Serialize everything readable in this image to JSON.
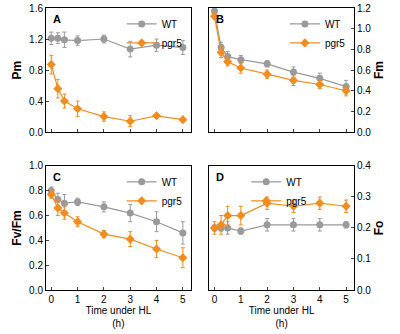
{
  "chart_data": [
    {
      "type": "line",
      "annotations": [
        "A"
      ],
      "y_label": "Pm",
      "tick_labels": "y",
      "legend": "upper right",
      "x": [
        0,
        0.25,
        0.5,
        1,
        2,
        3,
        4,
        5
      ],
      "xlim": [
        -0.2,
        5.3
      ],
      "xticks": [
        0,
        1,
        2,
        3,
        4,
        5
      ],
      "ylim": [
        0,
        1.6
      ],
      "yticks": [
        {
          "value": 0,
          "label": "0.0"
        },
        {
          "value": 0.4,
          "label": "0.4"
        },
        {
          "value": 0.8,
          "label": "0.8"
        },
        {
          "value": 1.2,
          "label": "1.2"
        },
        {
          "value": 1.6,
          "label": "1.6"
        }
      ],
      "series": [
        {
          "name": "WT",
          "color": "#9a9a9a",
          "marker": "circle",
          "values": [
            1.21,
            1.21,
            1.19,
            1.18,
            1.2,
            1.07,
            1.12,
            1.09
          ],
          "errors": [
            0.08,
            0.07,
            0.1,
            0.06,
            0.05,
            0.1,
            0.08,
            0.09
          ]
        },
        {
          "name": "pgr5",
          "color": "#f28c1e",
          "marker": "diamond",
          "values": [
            0.87,
            0.56,
            0.4,
            0.3,
            0.2,
            0.14,
            0.21,
            0.16
          ],
          "errors": [
            0.12,
            0.12,
            0.09,
            0.1,
            0.06,
            0.07,
            0.02,
            0.02
          ]
        }
      ]
    },
    {
      "type": "line",
      "annotations": [
        "B"
      ],
      "y_label": "Fm",
      "tick_labels": "y",
      "legend": "upper right",
      "x": [
        0,
        0.25,
        0.5,
        1,
        2,
        3,
        4,
        5
      ],
      "xlim": [
        -0.2,
        5.3
      ],
      "xticks": [
        0,
        1,
        2,
        3,
        4,
        5
      ],
      "ylim": [
        0,
        1.2
      ],
      "yticks": [
        {
          "value": 0,
          "label": "0.0"
        },
        {
          "value": 0.2,
          "label": "0.2"
        },
        {
          "value": 0.4,
          "label": "0.4"
        },
        {
          "value": 0.6,
          "label": "0.6"
        },
        {
          "value": 0.8,
          "label": "0.8"
        },
        {
          "value": 1.0,
          "label": "1.0"
        },
        {
          "value": 1.2,
          "label": "1.2"
        }
      ],
      "series": [
        {
          "name": "WT",
          "color": "#9a9a9a",
          "marker": "circle",
          "values": [
            1.17,
            0.82,
            0.73,
            0.7,
            0.66,
            0.58,
            0.52,
            0.44
          ],
          "errors": [
            0.03,
            0.05,
            0.05,
            0.04,
            0.03,
            0.05,
            0.05,
            0.06
          ]
        },
        {
          "name": "pgr5",
          "color": "#f28c1e",
          "marker": "diamond",
          "values": [
            1.12,
            0.77,
            0.68,
            0.62,
            0.56,
            0.5,
            0.46,
            0.4
          ],
          "errors": [
            0.03,
            0.05,
            0.04,
            0.05,
            0.04,
            0.05,
            0.04,
            0.05
          ]
        }
      ]
    },
    {
      "type": "line",
      "annotations": [
        "C"
      ],
      "y_label": "Fv/Fm",
      "x_label": "Time under HL\n(h)",
      "legend": "upper right",
      "x": [
        0,
        0.25,
        0.5,
        1,
        2,
        3,
        4,
        5
      ],
      "xlim": [
        -0.2,
        5.3
      ],
      "xticks": [
        0,
        1,
        2,
        3,
        4,
        5
      ],
      "ylim": [
        0,
        1.0
      ],
      "yticks": [
        {
          "value": 0,
          "label": "0.0"
        },
        {
          "value": 0.2,
          "label": "0.2"
        },
        {
          "value": 0.4,
          "label": "0.4"
        },
        {
          "value": 0.6,
          "label": "0.6"
        },
        {
          "value": 0.8,
          "label": "0.8"
        },
        {
          "value": 1.0,
          "label": "1.0"
        }
      ],
      "series": [
        {
          "name": "WT",
          "color": "#9a9a9a",
          "marker": "circle",
          "values": [
            0.8,
            0.73,
            0.7,
            0.71,
            0.67,
            0.62,
            0.55,
            0.46
          ],
          "errors": [
            0.03,
            0.05,
            0.07,
            0.03,
            0.04,
            0.07,
            0.08,
            0.09
          ]
        },
        {
          "name": "pgr5",
          "color": "#f28c1e",
          "marker": "diamond",
          "values": [
            0.77,
            0.66,
            0.62,
            0.55,
            0.45,
            0.41,
            0.33,
            0.26
          ],
          "errors": [
            0.03,
            0.06,
            0.05,
            0.04,
            0.03,
            0.06,
            0.07,
            0.08
          ]
        }
      ]
    },
    {
      "type": "line",
      "annotations": [
        "D"
      ],
      "y_label": "Fo",
      "x_label": "Time under HL\n(h)",
      "legend": "upper left",
      "x": [
        0,
        0.25,
        0.5,
        1,
        2,
        3,
        4,
        5
      ],
      "xlim": [
        -0.2,
        5.3
      ],
      "xticks": [
        0,
        1,
        2,
        3,
        4,
        5
      ],
      "ylim": [
        0,
        0.4
      ],
      "yticks": [
        {
          "value": 0,
          "label": "0.0"
        },
        {
          "value": 0.1,
          "label": "0.1"
        },
        {
          "value": 0.2,
          "label": "0.2"
        },
        {
          "value": 0.3,
          "label": "0.3"
        },
        {
          "value": 0.4,
          "label": "0.4"
        }
      ],
      "series": [
        {
          "name": "WT",
          "color": "#9a9a9a",
          "marker": "circle",
          "values": [
            0.2,
            0.2,
            0.2,
            0.19,
            0.21,
            0.21,
            0.21,
            0.21
          ],
          "errors": [
            0.01,
            0.01,
            0.02,
            0.01,
            0.02,
            0.02,
            0.02,
            0.01
          ]
        },
        {
          "name": "pgr5",
          "color": "#f28c1e",
          "marker": "diamond",
          "values": [
            0.2,
            0.21,
            0.24,
            0.24,
            0.28,
            0.27,
            0.28,
            0.27
          ],
          "errors": [
            0.02,
            0.03,
            0.03,
            0.03,
            0.02,
            0.02,
            0.02,
            0.02
          ]
        }
      ]
    }
  ]
}
